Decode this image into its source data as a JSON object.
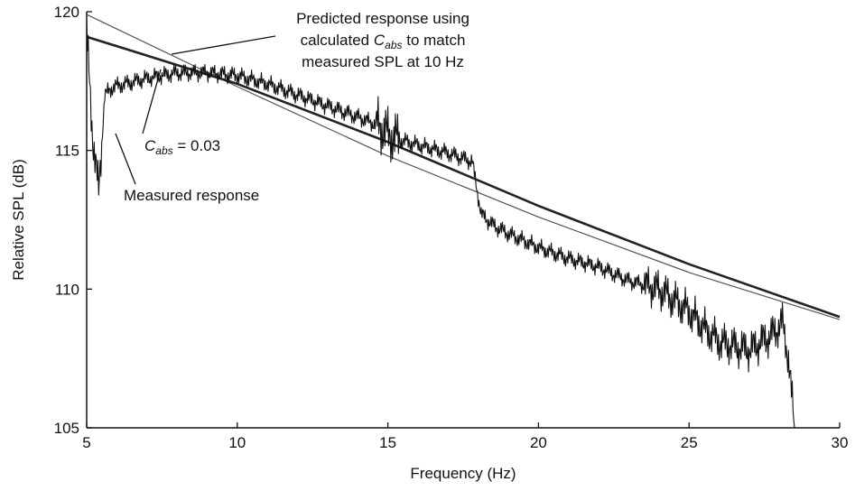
{
  "chart_data": {
    "type": "line",
    "title": "",
    "xlabel": "Frequency (Hz)",
    "ylabel": "Relative  SPL (dB)",
    "xlim": [
      5,
      30
    ],
    "ylim": [
      105,
      120
    ],
    "xticks": [
      5,
      10,
      15,
      20,
      25,
      30
    ],
    "yticks": [
      105,
      110,
      115,
      120
    ],
    "grid": false,
    "series": [
      {
        "name": "Predicted response using calculated C_abs to match measured SPL at 10 Hz",
        "color": "#555555",
        "x": [
          5,
          10,
          15,
          20,
          25,
          30
        ],
        "y": [
          119.9,
          117.3,
          114.8,
          112.6,
          110.6,
          108.9
        ]
      },
      {
        "name": "C_abs = 0.03",
        "color": "#222222",
        "x": [
          5,
          10,
          15,
          20,
          25,
          30
        ],
        "y": [
          119.1,
          117.4,
          115.3,
          113.0,
          110.9,
          109.0
        ]
      },
      {
        "name": "Measured response",
        "color": "#111111",
        "x": [
          5.0,
          5.2,
          5.4,
          5.6,
          5.9,
          6.3,
          7.0,
          8.0,
          9.0,
          10.0,
          11.0,
          12.0,
          13.0,
          14.0,
          14.7,
          15.0,
          15.3,
          16.0,
          17.0,
          17.8,
          18.1,
          18.5,
          19.0,
          20.0,
          21.0,
          22.0,
          23.0,
          24.0,
          25.0,
          25.5,
          26.0,
          27.0,
          27.8,
          28.1,
          28.3,
          28.5
        ],
        "y": [
          119.2,
          115.5,
          113.5,
          117.0,
          117.3,
          117.4,
          117.6,
          117.8,
          117.8,
          117.7,
          117.4,
          117.0,
          116.6,
          116.2,
          115.9,
          115.6,
          115.4,
          115.2,
          114.9,
          114.6,
          112.7,
          112.3,
          112.0,
          111.5,
          111.1,
          110.8,
          110.3,
          110.0,
          109.2,
          108.6,
          108.1,
          107.8,
          108.4,
          108.8,
          107.5,
          105.0
        ]
      }
    ],
    "annotations": [
      {
        "lines": [
          "Predicted response using",
          "calculated C_abs to match",
          "measured SPL at 10 Hz"
        ]
      },
      {
        "text": "C_abs = 0.03"
      },
      {
        "text": "Measured response"
      }
    ]
  }
}
